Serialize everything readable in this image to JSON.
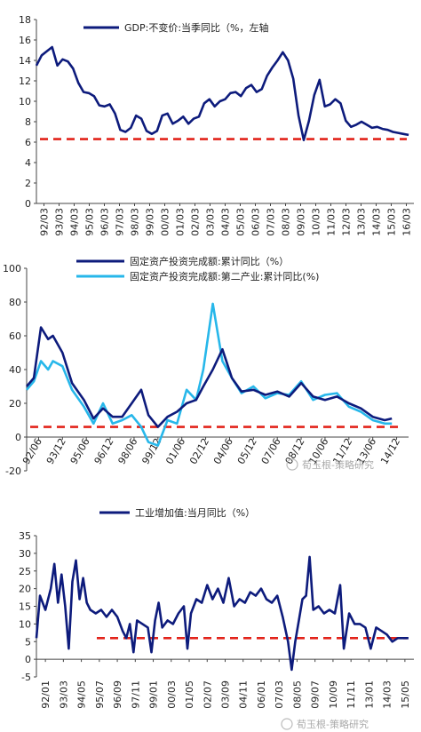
{
  "colors": {
    "dark_navy": "#0d1b7c",
    "light_blue": "#27b7ea",
    "red_dash": "#e2231a",
    "axis": "#444444"
  },
  "watermark": {
    "icon": "wechat-icon",
    "text": "荀玉根-策略研究"
  },
  "chart_data": [
    {
      "id": "gdp",
      "type": "line",
      "legend": [
        "GDP:不变价:当季同比（%，左轴"
      ],
      "legend_position": "top-center",
      "ylim": [
        0,
        18
      ],
      "yticks": [
        "0",
        "2",
        "4",
        "6",
        "8",
        "10",
        "12",
        "14",
        "16",
        "18"
      ],
      "xticks": [
        "92/03",
        "93/03",
        "94/03",
        "95/03",
        "96/03",
        "97/03",
        "98/03",
        "99/03",
        "00/03",
        "01/03",
        "02/03",
        "03/03",
        "04/03",
        "05/03",
        "06/03",
        "07/03",
        "08/03",
        "09/03",
        "10/03",
        "11/03",
        "12/03",
        "13/03",
        "14/03",
        "15/03",
        "16/03"
      ],
      "reference_line": 6.3,
      "series": [
        {
          "color": "#0d1b7c",
          "values": [
            [
              0,
              13.5
            ],
            [
              1,
              14.5
            ],
            [
              2,
              14.9
            ],
            [
              3,
              15.3
            ],
            [
              4,
              13.5
            ],
            [
              5,
              14.1
            ],
            [
              6,
              13.9
            ],
            [
              7,
              13.2
            ],
            [
              8,
              11.8
            ],
            [
              9,
              10.9
            ],
            [
              10,
              10.8
            ],
            [
              11,
              10.5
            ],
            [
              12,
              9.6
            ],
            [
              13,
              9.5
            ],
            [
              14,
              9.7
            ],
            [
              15,
              8.8
            ],
            [
              16,
              7.2
            ],
            [
              17,
              7.0
            ],
            [
              18,
              7.4
            ],
            [
              19,
              8.6
            ],
            [
              20,
              8.3
            ],
            [
              21,
              7.1
            ],
            [
              22,
              6.8
            ],
            [
              23,
              7.1
            ],
            [
              24,
              8.6
            ],
            [
              25,
              8.8
            ],
            [
              26,
              7.8
            ],
            [
              27,
              8.1
            ],
            [
              28,
              8.5
            ],
            [
              29,
              7.8
            ],
            [
              30,
              8.3
            ],
            [
              31,
              8.5
            ],
            [
              32,
              9.8
            ],
            [
              33,
              10.2
            ],
            [
              34,
              9.5
            ],
            [
              35,
              10.0
            ],
            [
              36,
              10.2
            ],
            [
              37,
              10.8
            ],
            [
              38,
              10.9
            ],
            [
              39,
              10.5
            ],
            [
              40,
              11.3
            ],
            [
              41,
              11.6
            ],
            [
              42,
              10.9
            ],
            [
              43,
              11.2
            ],
            [
              44,
              12.5
            ],
            [
              45,
              13.3
            ],
            [
              46,
              14.0
            ],
            [
              47,
              14.8
            ],
            [
              48,
              14.0
            ],
            [
              49,
              12.2
            ],
            [
              50,
              8.6
            ],
            [
              51,
              6.2
            ],
            [
              52,
              8.1
            ],
            [
              53,
              10.6
            ],
            [
              54,
              12.1
            ],
            [
              55,
              9.5
            ],
            [
              56,
              9.7
            ],
            [
              57,
              10.2
            ],
            [
              58,
              9.8
            ],
            [
              59,
              8.1
            ],
            [
              60,
              7.5
            ],
            [
              61,
              7.7
            ],
            [
              62,
              8.0
            ],
            [
              63,
              7.7
            ],
            [
              64,
              7.4
            ],
            [
              65,
              7.5
            ],
            [
              66,
              7.3
            ],
            [
              67,
              7.2
            ],
            [
              68,
              7.0
            ],
            [
              69,
              6.9
            ],
            [
              70,
              6.8
            ],
            [
              71,
              6.7
            ]
          ]
        }
      ]
    },
    {
      "id": "fai",
      "type": "line",
      "legend": [
        "固定资产投资完成额:累计同比（%）",
        "固定资产投资完成额:第二产业:累计同比(%)"
      ],
      "legend_position": "top-center",
      "ylim": [
        -20,
        100
      ],
      "yticks": [
        "-20",
        "0",
        "20",
        "40",
        "60",
        "80",
        "100"
      ],
      "xticks": [
        "92/06",
        "93/12",
        "95/06",
        "96/12",
        "98/06",
        "99/12",
        "01/06",
        "02/12",
        "04/06",
        "05/12",
        "07/06",
        "08/12",
        "10/06",
        "11/12",
        "13/06",
        "14/12"
      ],
      "reference_line": 6,
      "series": [
        {
          "color": "#0d1b7c",
          "values": [
            [
              0,
              30
            ],
            [
              0.3,
              35
            ],
            [
              0.6,
              65
            ],
            [
              0.9,
              58
            ],
            [
              1.1,
              60
            ],
            [
              1.5,
              50
            ],
            [
              1.9,
              32
            ],
            [
              2.4,
              22
            ],
            [
              2.8,
              11
            ],
            [
              3.2,
              17
            ],
            [
              3.6,
              12
            ],
            [
              4.0,
              12
            ],
            [
              4.4,
              20
            ],
            [
              4.8,
              28
            ],
            [
              5.1,
              13
            ],
            [
              5.5,
              6
            ],
            [
              5.9,
              12
            ],
            [
              6.3,
              15
            ],
            [
              6.7,
              20
            ],
            [
              7.1,
              22
            ],
            [
              7.4,
              30
            ],
            [
              7.8,
              40
            ],
            [
              8.2,
              52
            ],
            [
              8.6,
              35
            ],
            [
              9.0,
              27
            ],
            [
              9.5,
              28
            ],
            [
              10.0,
              25
            ],
            [
              10.5,
              27
            ],
            [
              11.0,
              24
            ],
            [
              11.5,
              32
            ],
            [
              12.0,
              24
            ],
            [
              12.5,
              22
            ],
            [
              13.0,
              24
            ],
            [
              13.5,
              20
            ],
            [
              14.0,
              17
            ],
            [
              14.5,
              12
            ],
            [
              15.0,
              10
            ],
            [
              15.3,
              11
            ]
          ]
        },
        {
          "color": "#27b7ea",
          "values": [
            [
              0,
              28
            ],
            [
              0.3,
              33
            ],
            [
              0.6,
              45
            ],
            [
              0.9,
              40
            ],
            [
              1.1,
              45
            ],
            [
              1.5,
              42
            ],
            [
              1.9,
              28
            ],
            [
              2.4,
              18
            ],
            [
              2.8,
              8
            ],
            [
              3.2,
              20
            ],
            [
              3.6,
              8
            ],
            [
              4.0,
              10
            ],
            [
              4.4,
              13
            ],
            [
              4.8,
              6
            ],
            [
              5.1,
              -3
            ],
            [
              5.5,
              -5
            ],
            [
              5.9,
              10
            ],
            [
              6.3,
              8
            ],
            [
              6.7,
              28
            ],
            [
              7.1,
              22
            ],
            [
              7.4,
              40
            ],
            [
              7.8,
              79
            ],
            [
              8.2,
              45
            ],
            [
              8.6,
              35
            ],
            [
              9.0,
              26
            ],
            [
              9.5,
              30
            ],
            [
              10.0,
              23
            ],
            [
              10.5,
              26
            ],
            [
              11.0,
              25
            ],
            [
              11.5,
              33
            ],
            [
              12.0,
              22
            ],
            [
              12.5,
              25
            ],
            [
              13.0,
              26
            ],
            [
              13.5,
              18
            ],
            [
              14.0,
              15
            ],
            [
              14.5,
              10
            ],
            [
              15.0,
              8
            ],
            [
              15.3,
              8
            ]
          ]
        }
      ]
    },
    {
      "id": "ip",
      "type": "line",
      "legend": [
        "工业增加值:当月同比（%）"
      ],
      "legend_position": "top-center",
      "ylim": [
        -5,
        35
      ],
      "yticks": [
        "-5",
        "0",
        "5",
        "10",
        "15",
        "20",
        "25",
        "30",
        "35"
      ],
      "xticks": [
        "92/01",
        "93/03",
        "94/05",
        "95/07",
        "96/09",
        "97/11",
        "99/01",
        "00/03",
        "01/05",
        "02/07",
        "03/09",
        "04/11",
        "06/01",
        "07/03",
        "08/05",
        "09/07",
        "10/09",
        "11/11",
        "13/01",
        "14/03",
        "15/05"
      ],
      "reference_line": 6,
      "series": [
        {
          "color": "#0d1b7c",
          "values": [
            [
              0,
              6
            ],
            [
              0.2,
              18
            ],
            [
              0.5,
              14
            ],
            [
              0.8,
              20
            ],
            [
              1.0,
              27
            ],
            [
              1.2,
              16
            ],
            [
              1.4,
              24
            ],
            [
              1.6,
              15
            ],
            [
              1.8,
              3
            ],
            [
              2.0,
              22
            ],
            [
              2.2,
              28
            ],
            [
              2.4,
              17
            ],
            [
              2.6,
              23
            ],
            [
              2.8,
              16
            ],
            [
              3.0,
              14
            ],
            [
              3.3,
              13
            ],
            [
              3.6,
              14
            ],
            [
              3.9,
              12
            ],
            [
              4.2,
              14
            ],
            [
              4.5,
              12
            ],
            [
              4.8,
              8
            ],
            [
              5.0,
              6
            ],
            [
              5.2,
              10
            ],
            [
              5.4,
              2
            ],
            [
              5.6,
              11
            ],
            [
              5.9,
              10
            ],
            [
              6.2,
              9
            ],
            [
              6.4,
              2
            ],
            [
              6.6,
              11
            ],
            [
              6.8,
              16
            ],
            [
              7.0,
              9
            ],
            [
              7.3,
              11
            ],
            [
              7.6,
              10
            ],
            [
              7.9,
              13
            ],
            [
              8.2,
              15
            ],
            [
              8.4,
              3
            ],
            [
              8.6,
              13
            ],
            [
              8.9,
              17
            ],
            [
              9.2,
              16
            ],
            [
              9.5,
              21
            ],
            [
              9.8,
              17
            ],
            [
              10.1,
              20
            ],
            [
              10.4,
              16
            ],
            [
              10.7,
              23
            ],
            [
              11.0,
              15
            ],
            [
              11.3,
              17
            ],
            [
              11.6,
              16
            ],
            [
              11.9,
              19
            ],
            [
              12.2,
              18
            ],
            [
              12.5,
              20
            ],
            [
              12.8,
              17
            ],
            [
              13.1,
              16
            ],
            [
              13.4,
              18
            ],
            [
              13.7,
              12
            ],
            [
              14.0,
              5
            ],
            [
              14.2,
              -3
            ],
            [
              14.4,
              5
            ],
            [
              14.6,
              11
            ],
            [
              14.8,
              17
            ],
            [
              15.0,
              18
            ],
            [
              15.2,
              29
            ],
            [
              15.4,
              14
            ],
            [
              15.7,
              15
            ],
            [
              16.0,
              13
            ],
            [
              16.3,
              14
            ],
            [
              16.6,
              13
            ],
            [
              16.9,
              21
            ],
            [
              17.1,
              3
            ],
            [
              17.4,
              13
            ],
            [
              17.7,
              10
            ],
            [
              18.0,
              10
            ],
            [
              18.3,
              9
            ],
            [
              18.6,
              3
            ],
            [
              18.9,
              9
            ],
            [
              19.2,
              8
            ],
            [
              19.5,
              7
            ],
            [
              19.8,
              5
            ],
            [
              20.1,
              6
            ],
            [
              20.4,
              6
            ],
            [
              20.7,
              6
            ]
          ]
        }
      ]
    }
  ]
}
